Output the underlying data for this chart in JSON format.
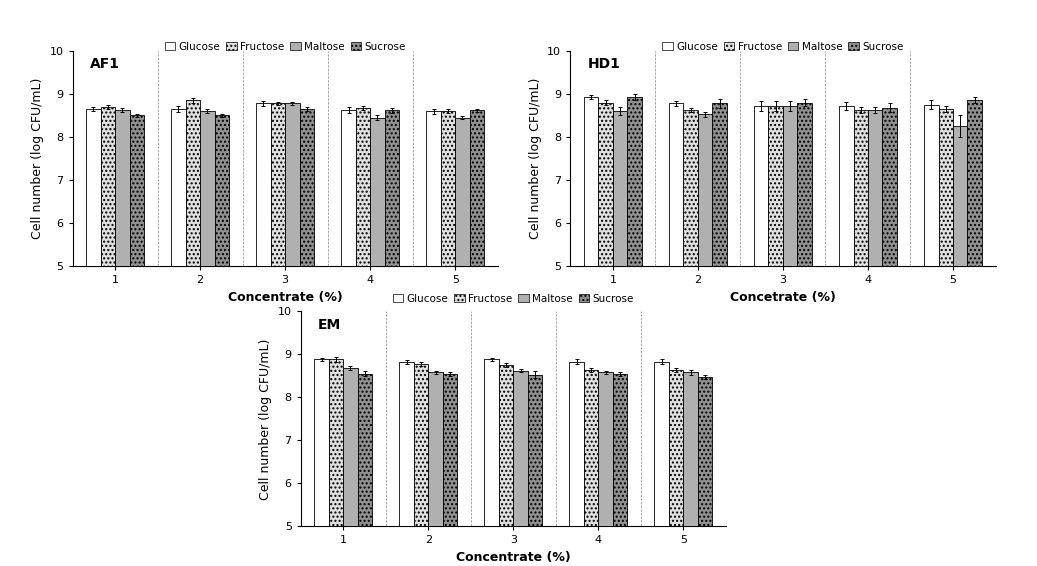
{
  "panels": [
    {
      "label": "AF1",
      "xlabel": "Concentrate (%)",
      "ylabel": "Cell number (log CFU/mL)",
      "ylim": [
        5,
        10
      ],
      "yticks": [
        5,
        6,
        7,
        8,
        9,
        10
      ],
      "concentrations": [
        1,
        2,
        3,
        4,
        5
      ],
      "values": {
        "Glucose": [
          8.65,
          8.65,
          8.78,
          8.62,
          8.6
        ],
        "Fructose": [
          8.7,
          8.85,
          8.78,
          8.67,
          8.6
        ],
        "Maltose": [
          8.62,
          8.6,
          8.78,
          8.45,
          8.45
        ],
        "Sucrose": [
          8.5,
          8.5,
          8.65,
          8.62,
          8.62
        ]
      },
      "errors": {
        "Glucose": [
          0.05,
          0.06,
          0.05,
          0.07,
          0.06
        ],
        "Fructose": [
          0.05,
          0.06,
          0.04,
          0.05,
          0.05
        ],
        "Maltose": [
          0.05,
          0.05,
          0.03,
          0.06,
          0.04
        ],
        "Sucrose": [
          0.04,
          0.04,
          0.04,
          0.06,
          0.04
        ]
      }
    },
    {
      "label": "HD1",
      "xlabel": "Concetrate (%)",
      "ylabel": "Cell number (log CFU/mL)",
      "ylim": [
        5,
        10
      ],
      "yticks": [
        5,
        6,
        7,
        8,
        9,
        10
      ],
      "concentrations": [
        1,
        2,
        3,
        4,
        5
      ],
      "values": {
        "Glucose": [
          8.93,
          8.78,
          8.72,
          8.72,
          8.75
        ],
        "Fructose": [
          8.8,
          8.63,
          8.72,
          8.63,
          8.65
        ],
        "Maltose": [
          8.6,
          8.53,
          8.72,
          8.63,
          8.25
        ],
        "Sucrose": [
          8.93,
          8.78,
          8.8,
          8.68,
          8.85
        ]
      },
      "errors": {
        "Glucose": [
          0.05,
          0.06,
          0.12,
          0.1,
          0.1
        ],
        "Fructose": [
          0.06,
          0.05,
          0.12,
          0.07,
          0.08
        ],
        "Maltose": [
          0.1,
          0.06,
          0.12,
          0.07,
          0.25
        ],
        "Sucrose": [
          0.08,
          0.1,
          0.08,
          0.1,
          0.07
        ]
      }
    },
    {
      "label": "EM",
      "xlabel": "Concentrate (%)",
      "ylabel": "Cell number (log CFU/mL)",
      "ylim": [
        5,
        10
      ],
      "yticks": [
        5,
        6,
        7,
        8,
        9,
        10
      ],
      "concentrations": [
        1,
        2,
        3,
        4,
        5
      ],
      "values": {
        "Glucose": [
          8.88,
          8.82,
          8.88,
          8.83,
          8.83
        ],
        "Fructose": [
          8.88,
          8.78,
          8.75,
          8.63,
          8.63
        ],
        "Maltose": [
          8.68,
          8.58,
          8.62,
          8.58,
          8.58
        ],
        "Sucrose": [
          8.55,
          8.55,
          8.53,
          8.55,
          8.48
        ]
      },
      "errors": {
        "Glucose": [
          0.04,
          0.05,
          0.04,
          0.05,
          0.06
        ],
        "Fructose": [
          0.05,
          0.04,
          0.04,
          0.05,
          0.05
        ],
        "Maltose": [
          0.04,
          0.04,
          0.04,
          0.04,
          0.05
        ],
        "Sucrose": [
          0.06,
          0.05,
          0.08,
          0.05,
          0.05
        ]
      }
    }
  ],
  "sugar_names": [
    "Glucose",
    "Fructose",
    "Maltose",
    "Sucrose"
  ],
  "bar_colors": [
    "#ffffff",
    "#e0e0e0",
    "#b0b0b0",
    "#909090"
  ],
  "bar_edgecolor": "#000000",
  "bar_width": 0.17,
  "legend_fontsize": 7.5,
  "tick_fontsize": 8,
  "label_fontsize": 9,
  "title_fontsize": 10,
  "hatch_patterns": [
    "",
    "....",
    "",
    "...."
  ]
}
